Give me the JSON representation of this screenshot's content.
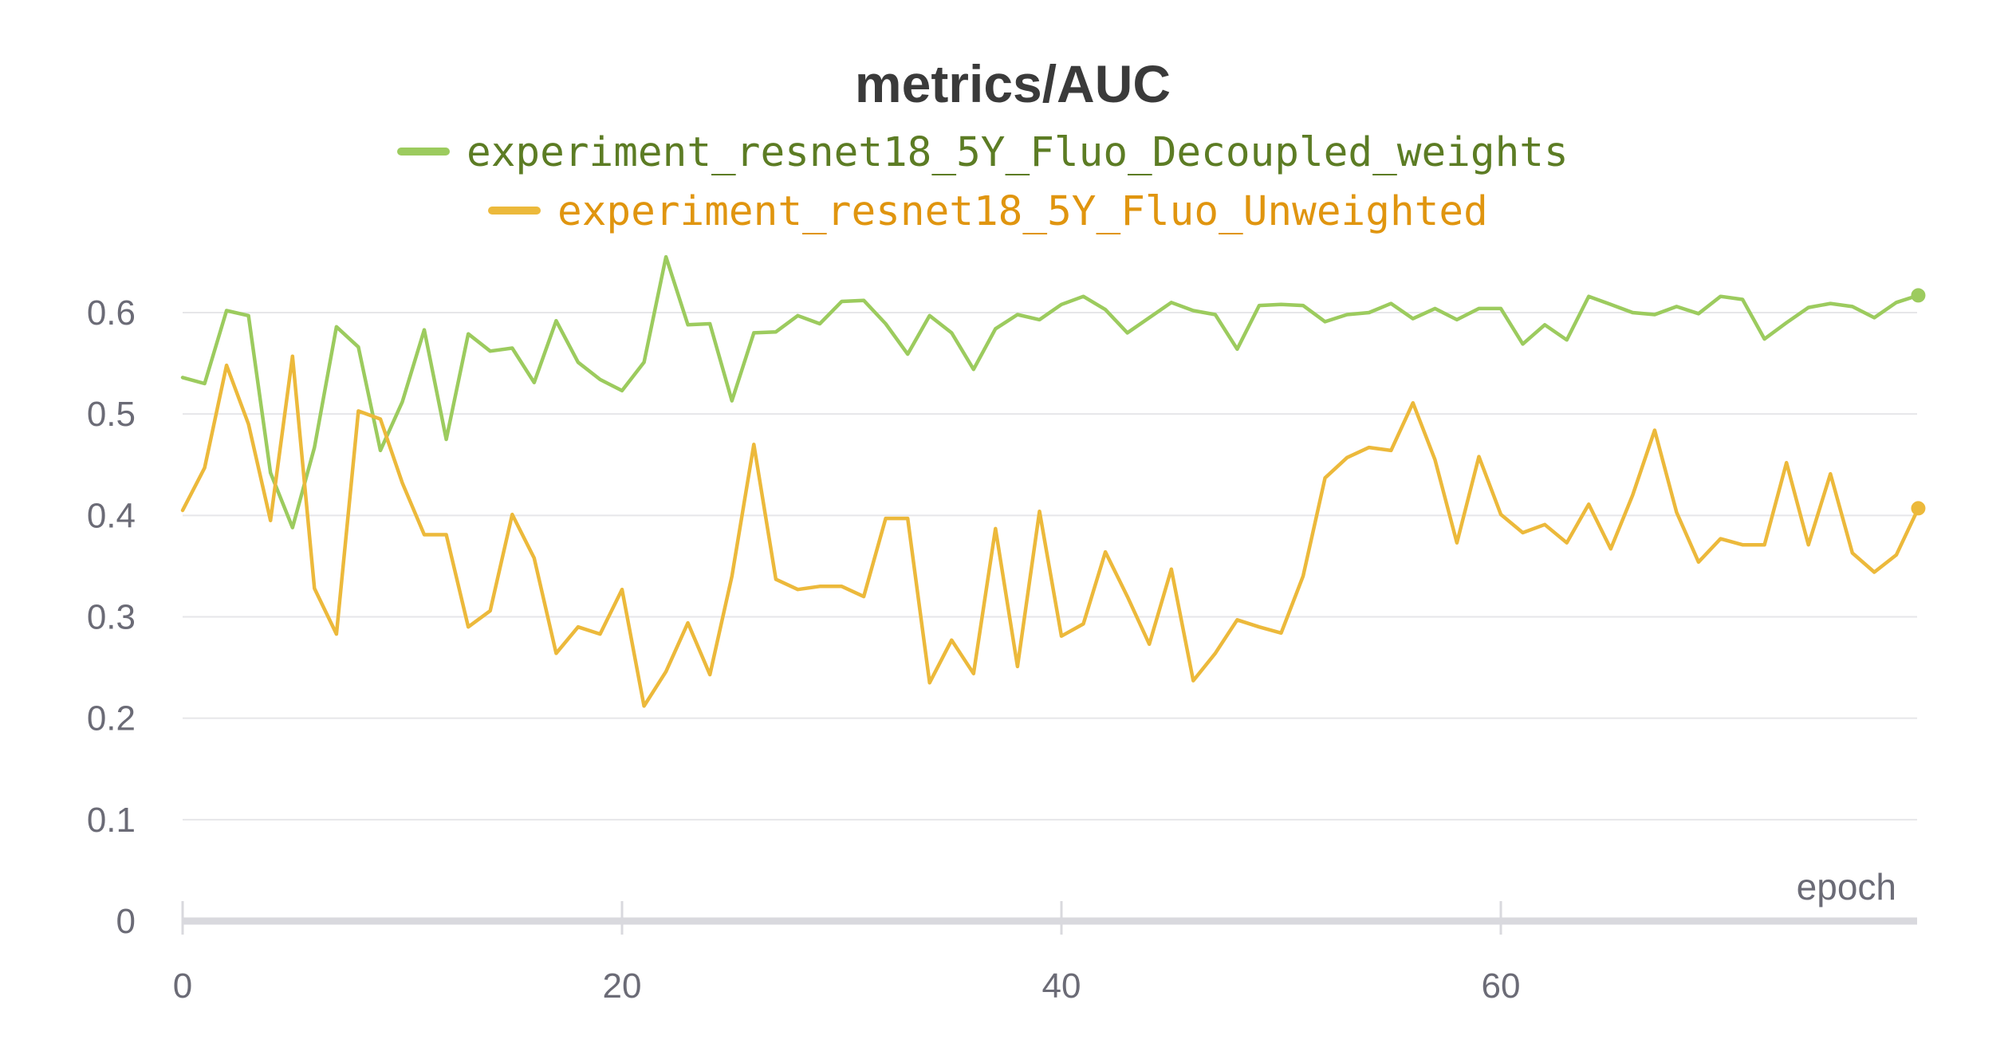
{
  "chart_data": {
    "type": "line",
    "title": "metrics/AUC",
    "xlabel": "epoch",
    "ylabel": "",
    "xlim": [
      0,
      79
    ],
    "ylim": [
      0,
      0.65
    ],
    "x_ticks": [
      0,
      20,
      40,
      60
    ],
    "y_ticks": [
      0,
      0.1,
      0.2,
      0.3,
      0.4,
      0.5,
      0.6
    ],
    "y_tick_labels": [
      "0",
      "0.1",
      "0.2",
      "0.3",
      "0.4",
      "0.5",
      "0.6"
    ],
    "x_tick_labels": [
      "0",
      "20",
      "40",
      "60"
    ],
    "grid": "horizontal",
    "legend_position": "top-center",
    "series": [
      {
        "name": "experiment_resnet18_5Y_Fluo_Decoupled_weights",
        "color": "#9ccb5e",
        "legend_color": "#5c7c24",
        "values": [
          0.536,
          0.53,
          0.602,
          0.597,
          0.442,
          0.388,
          0.467,
          0.586,
          0.566,
          0.464,
          0.512,
          0.583,
          0.475,
          0.579,
          0.562,
          0.565,
          0.531,
          0.592,
          0.551,
          0.534,
          0.523,
          0.551,
          0.655,
          0.588,
          0.589,
          0.513,
          0.58,
          0.581,
          0.597,
          0.589,
          0.611,
          0.612,
          0.589,
          0.559,
          0.597,
          0.58,
          0.544,
          0.584,
          0.598,
          0.593,
          0.608,
          0.616,
          0.603,
          0.58,
          0.595,
          0.61,
          0.602,
          0.598,
          0.564,
          0.607,
          0.608,
          0.607,
          0.591,
          0.598,
          0.6,
          0.609,
          0.594,
          0.604,
          0.593,
          0.604,
          0.604,
          0.569,
          0.588,
          0.573,
          0.616,
          0.608,
          0.6,
          0.598,
          0.606,
          0.599,
          0.616,
          0.613,
          0.574,
          0.59,
          0.605,
          0.609,
          0.606,
          0.595,
          0.61,
          0.617
        ]
      },
      {
        "name": "experiment_resnet18_5Y_Fluo_Unweighted",
        "color": "#ecb93b",
        "legend_color": "#e0950f",
        "values": [
          0.405,
          0.447,
          0.548,
          0.49,
          0.395,
          0.557,
          0.328,
          0.283,
          0.503,
          0.495,
          0.432,
          0.381,
          0.381,
          0.29,
          0.306,
          0.401,
          0.358,
          0.264,
          0.29,
          0.283,
          0.327,
          0.212,
          0.246,
          0.294,
          0.243,
          0.34,
          0.47,
          0.337,
          0.327,
          0.33,
          0.33,
          0.32,
          0.397,
          0.397,
          0.235,
          0.277,
          0.244,
          0.387,
          0.251,
          0.404,
          0.281,
          0.293,
          0.364,
          0.32,
          0.273,
          0.347,
          0.237,
          0.264,
          0.297,
          0.29,
          0.284,
          0.34,
          0.437,
          0.457,
          0.467,
          0.464,
          0.511,
          0.455,
          0.373,
          0.458,
          0.401,
          0.383,
          0.391,
          0.373,
          0.411,
          0.367,
          0.42,
          0.484,
          0.403,
          0.354,
          0.377,
          0.371,
          0.371,
          0.452,
          0.371,
          0.441,
          0.363,
          0.344,
          0.361,
          0.407
        ]
      }
    ]
  }
}
